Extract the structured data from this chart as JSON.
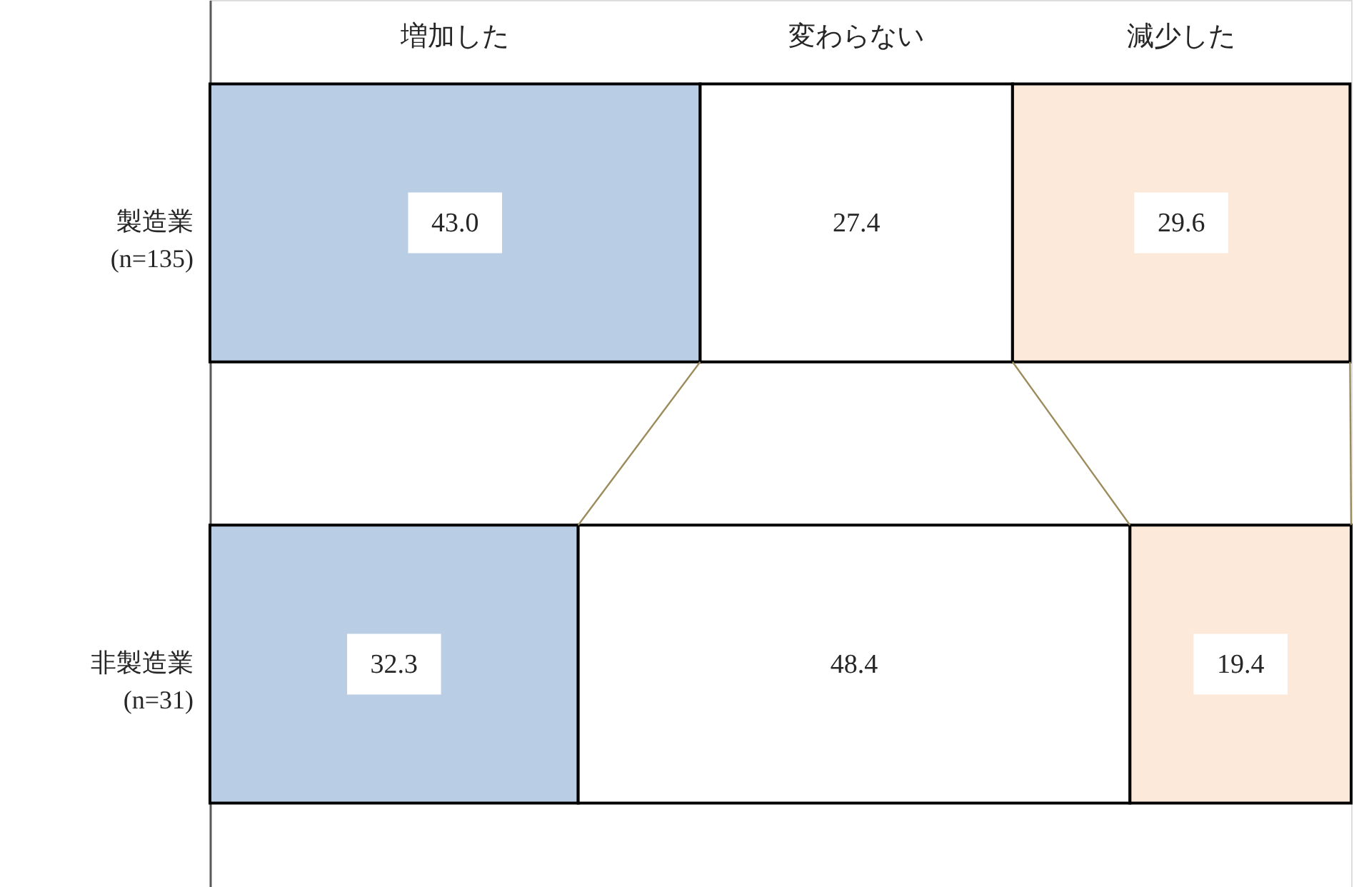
{
  "chart_data": {
    "type": "bar",
    "orientation": "horizontal",
    "stacked": true,
    "categories": [
      "製造業\n(n=135)",
      "非製造業\n(n=31)"
    ],
    "series": [
      {
        "name": "増加した",
        "color": "#b9cde5",
        "values": [
          43.0,
          32.3
        ],
        "value_labels": [
          "43.0",
          "32.3"
        ]
      },
      {
        "name": "変わらない",
        "color": "#ffffff",
        "values": [
          27.4,
          48.4
        ],
        "value_labels": [
          "27.4",
          "48.4"
        ]
      },
      {
        "name": "減少した",
        "color": "#fde9d9",
        "values": [
          29.6,
          19.4
        ],
        "value_labels": [
          "29.6",
          "19.4"
        ]
      }
    ],
    "legend": "top",
    "tick_labels": "y"
  }
}
